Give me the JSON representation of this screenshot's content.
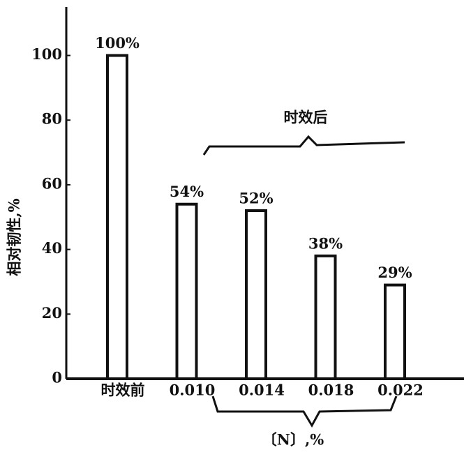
{
  "chart_data": {
    "type": "bar",
    "y_label": "相对韧性,%",
    "x_label": "〔N〕,%",
    "annotation": "时效后",
    "categories": [
      "时效前",
      "0.010",
      "0.014",
      "0.018",
      "0.022"
    ],
    "values": [
      100,
      54,
      52,
      38,
      29
    ],
    "value_labels": [
      "100%",
      "54%",
      "52%",
      "38%",
      "29%"
    ],
    "color": "#111111",
    "ylim": [
      0,
      115
    ],
    "yticks": [
      0,
      20,
      40,
      60,
      80,
      100
    ]
  }
}
